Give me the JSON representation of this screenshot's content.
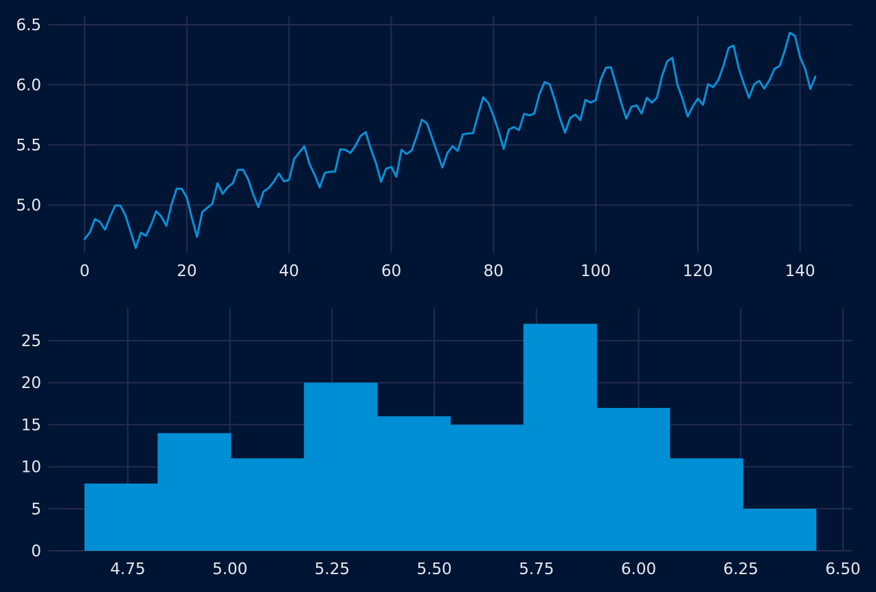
{
  "chart_data": [
    {
      "type": "line",
      "title": "",
      "xlabel": "",
      "ylabel": "",
      "xlim": [
        -7.15,
        150.15
      ],
      "ylim": [
        4.604,
        6.534
      ],
      "xticks": [
        0,
        20,
        40,
        60,
        80,
        100,
        120,
        140
      ],
      "yticks": [
        5.0,
        5.5,
        6.0,
        6.5
      ],
      "xtick_labels": [
        "0",
        "20",
        "40",
        "60",
        "80",
        "100",
        "120",
        "140"
      ],
      "ytick_labels": [
        "5.0",
        "5.5",
        "6.0",
        "6.5"
      ],
      "grid": true,
      "legend": "none",
      "color": "#0b8fd6",
      "x_start": 0,
      "x_step": 1,
      "y": [
        4.718,
        4.771,
        4.883,
        4.86,
        4.796,
        4.905,
        4.997,
        4.997,
        4.913,
        4.779,
        4.644,
        4.771,
        4.745,
        4.836,
        4.949,
        4.905,
        4.828,
        5.004,
        5.136,
        5.136,
        5.063,
        4.89,
        4.736,
        4.942,
        4.977,
        5.011,
        5.182,
        5.094,
        5.148,
        5.182,
        5.293,
        5.293,
        5.215,
        5.088,
        4.984,
        5.112,
        5.142,
        5.193,
        5.263,
        5.198,
        5.209,
        5.384,
        5.438,
        5.489,
        5.342,
        5.252,
        5.147,
        5.268,
        5.278,
        5.278,
        5.464,
        5.46,
        5.434,
        5.493,
        5.576,
        5.606,
        5.468,
        5.352,
        5.193,
        5.303,
        5.318,
        5.236,
        5.46,
        5.425,
        5.455,
        5.576,
        5.71,
        5.68,
        5.557,
        5.434,
        5.313,
        5.434,
        5.489,
        5.451,
        5.587,
        5.595,
        5.598,
        5.753,
        5.897,
        5.849,
        5.743,
        5.613,
        5.468,
        5.628,
        5.649,
        5.624,
        5.759,
        5.746,
        5.762,
        5.924,
        6.023,
        6.004,
        5.872,
        5.724,
        5.602,
        5.724,
        5.753,
        5.707,
        5.875,
        5.852,
        5.872,
        6.045,
        6.142,
        6.146,
        6.001,
        5.849,
        5.72,
        5.817,
        5.829,
        5.762,
        5.892,
        5.852,
        5.894,
        6.075,
        6.196,
        6.225,
        6.001,
        5.883,
        5.737,
        5.82,
        5.886,
        5.834,
        6.006,
        5.981,
        6.04,
        6.157,
        6.306,
        6.326,
        6.138,
        6.009,
        5.892,
        6.004,
        6.033,
        5.969,
        6.038,
        6.133,
        6.157,
        6.282,
        6.433,
        6.407,
        6.23,
        6.133,
        5.966,
        6.068
      ]
    },
    {
      "type": "bar",
      "title": "",
      "xlabel": "",
      "ylabel": "",
      "xlim": [
        4.555,
        6.522
      ],
      "ylim": [
        0,
        28.35
      ],
      "xticks": [
        4.75,
        5.0,
        5.25,
        5.5,
        5.75,
        6.0,
        6.25,
        6.5
      ],
      "yticks": [
        0,
        5,
        10,
        15,
        20,
        25
      ],
      "xtick_labels": [
        "4.75",
        "5.00",
        "5.25",
        "5.50",
        "5.75",
        "6.00",
        "6.25",
        "6.50"
      ],
      "ytick_labels": [
        "0",
        "5",
        "10",
        "15",
        "20",
        "25"
      ],
      "grid": true,
      "legend": "none",
      "color": "#008fd5",
      "bin_edges": [
        4.644,
        4.823,
        5.002,
        5.181,
        5.36,
        5.539,
        5.718,
        5.897,
        6.076,
        6.255,
        6.434
      ],
      "values": [
        8,
        14,
        11,
        20,
        16,
        15,
        27,
        17,
        11,
        5
      ]
    }
  ]
}
